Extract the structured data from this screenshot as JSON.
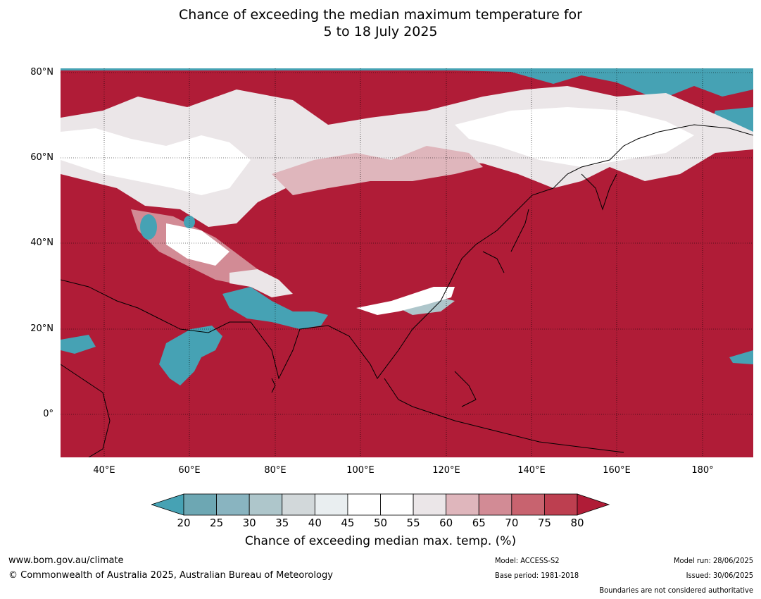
{
  "title": {
    "line1": "Chance of exceeding the median maximum temperature for",
    "line2": "5 to 18 July 2025"
  },
  "axes": {
    "lat_labels": [
      "80°N",
      "60°N",
      "40°N",
      "20°N",
      "0°"
    ],
    "lon_labels": [
      "40°E",
      "60°E",
      "80°E",
      "100°E",
      "120°E",
      "140°E",
      "160°E",
      "180°"
    ]
  },
  "colorbar": {
    "ticks": [
      "20",
      "25",
      "30",
      "35",
      "40",
      "45",
      "50",
      "55",
      "60",
      "65",
      "70",
      "75",
      "80"
    ],
    "colors": [
      "#6da7b3",
      "#89b4c0",
      "#aec6cb",
      "#d2d8da",
      "#e9eef0",
      "#ffffff",
      "#ffffff",
      "#ebe6e8",
      "#dfb6bc",
      "#d28b95",
      "#c8636f",
      "#bd3f50"
    ],
    "under_color": "#46a2b4",
    "over_color": "#b01c37",
    "label": "Chance of exceeding median max. temp. (%)"
  },
  "footer": {
    "website": "www.bom.gov.au/climate",
    "copyright": "© Commonwealth of Australia 2025, Australian Bureau of Meteorology",
    "model": "Model: ACCESS-S2",
    "base_period": "Base period: 1981-2018",
    "model_run": "Model run: 28/06/2025",
    "issued": "Issued: 30/06/2025",
    "disclaimer": "Boundaries are not considered authoritative"
  }
}
